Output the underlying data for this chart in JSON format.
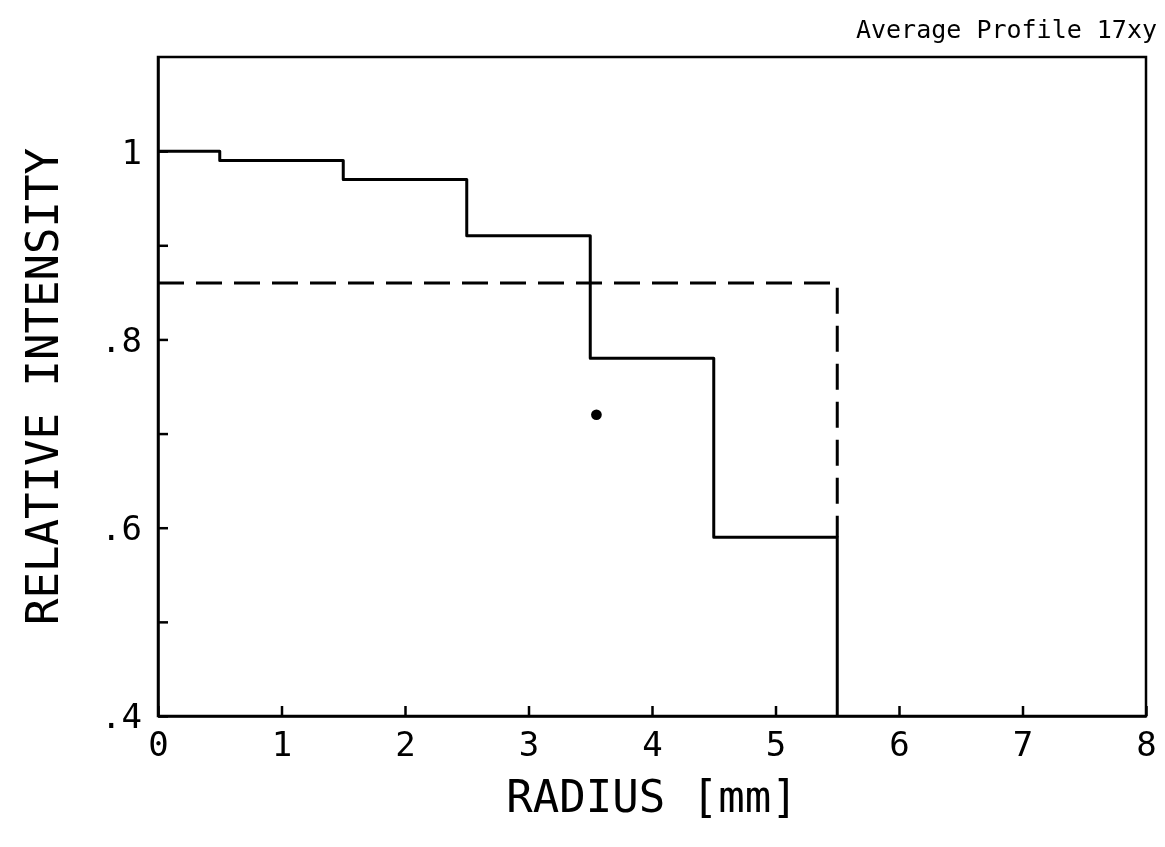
{
  "chart_data": {
    "type": "line",
    "title": "Average Profile 17xy",
    "xlabel": "RADIUS [mm]",
    "ylabel": "RELATIVE INTENSITY",
    "xlim": [
      0,
      8
    ],
    "xticks": [
      0,
      1,
      2,
      3,
      4,
      5,
      6,
      7,
      8
    ],
    "ylim": [
      0.4,
      1.1
    ],
    "yticks": [
      {
        "value": 0.4,
        "label": ".4"
      },
      {
        "value": 0.5,
        "label": null
      },
      {
        "value": 0.6,
        "label": ".6"
      },
      {
        "value": 0.7,
        "label": null
      },
      {
        "value": 0.8,
        "label": ".8"
      },
      {
        "value": 0.9,
        "label": null
      },
      {
        "value": 1,
        "label": "1"
      }
    ],
    "grid": false,
    "series": [
      {
        "color": "#000000",
        "line_style": "solid",
        "x": [
          0,
          0.5,
          0.5,
          1.5,
          1.5,
          2.5,
          2.5,
          3.5,
          3.5,
          4.5,
          4.5,
          5.5,
          5.5
        ],
        "values": [
          1,
          1,
          0.99,
          0.99,
          0.97,
          0.97,
          0.91,
          0.91,
          0.78,
          0.78,
          0.59,
          0.59,
          0.4
        ]
      },
      {
        "color": "#000000",
        "line_style": "dashed",
        "x": [
          0,
          5.5,
          5.5
        ],
        "values": [
          0.86,
          0.86,
          0.59
        ]
      },
      {
        "type": "scatter",
        "color": "#000000",
        "marker": "circle",
        "x": [
          3.55
        ],
        "values": [
          0.72
        ]
      }
    ]
  }
}
